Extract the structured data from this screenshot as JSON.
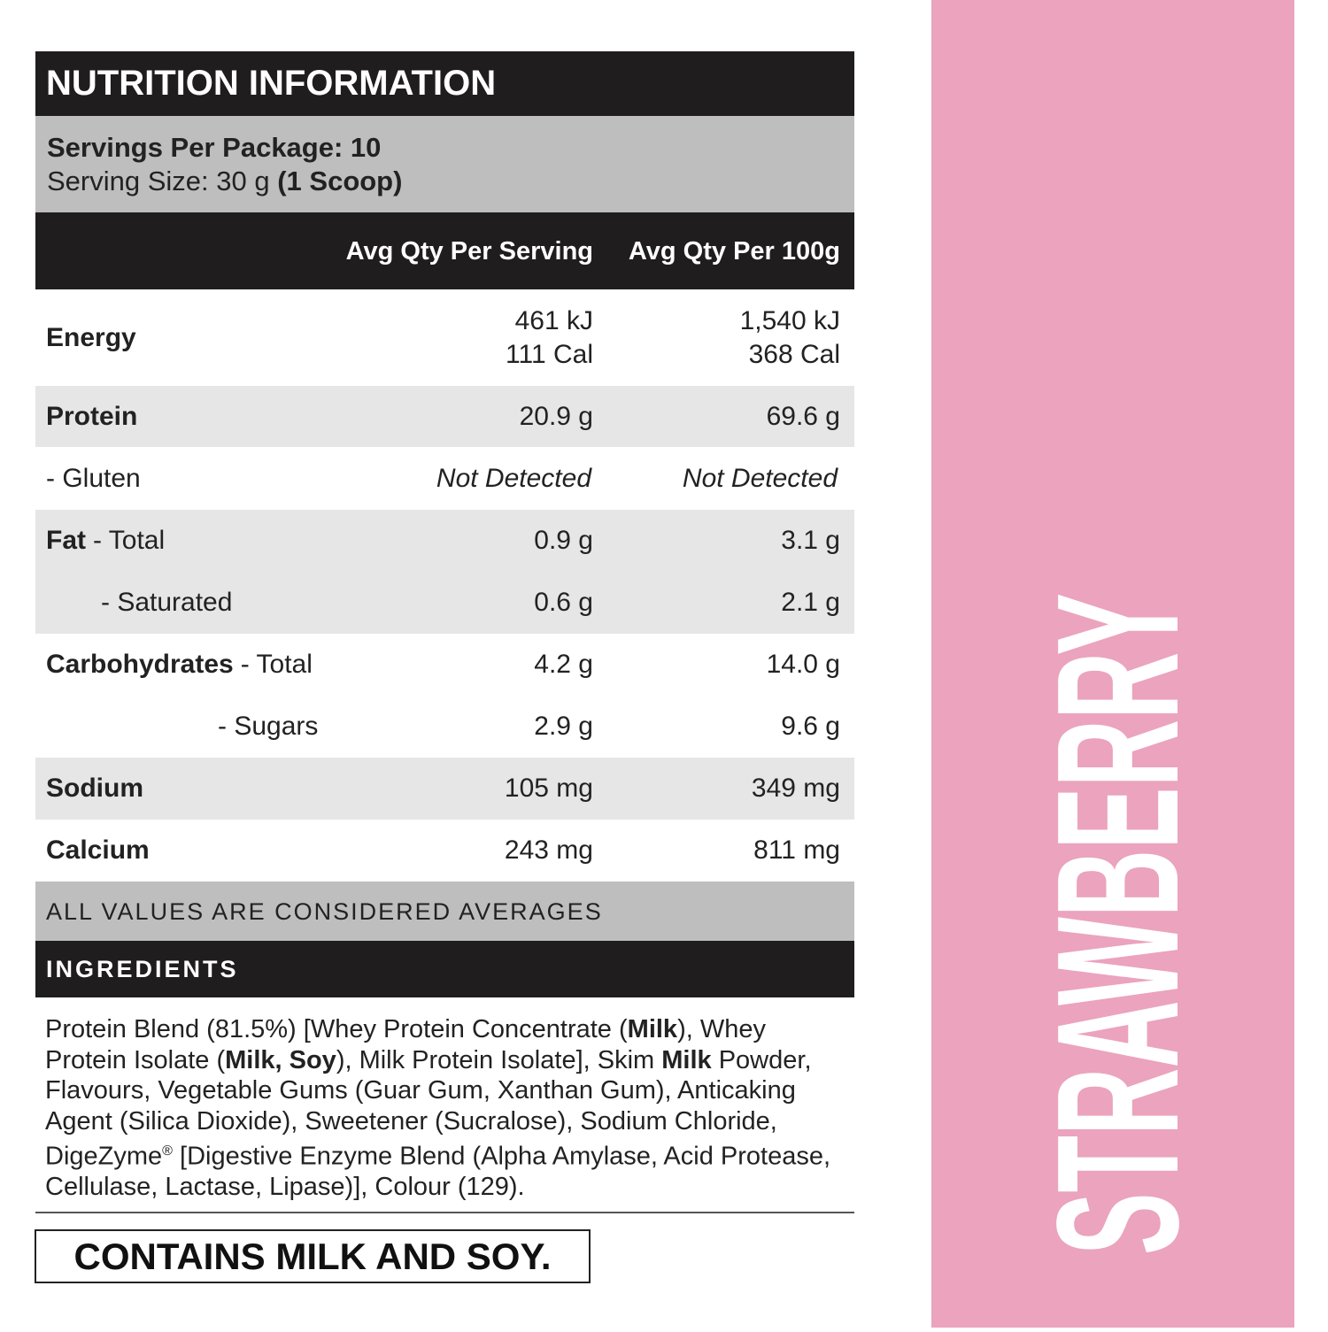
{
  "header": {
    "title": "NUTRITION INFORMATION"
  },
  "servings": {
    "per_package": "Servings Per Package: 10",
    "size": "Serving Size: 30 g",
    "size_note": "(1 Scoop)"
  },
  "table": {
    "columns": [
      "Avg Qty Per Serving",
      "Avg Qty Per 100g"
    ],
    "rows": [
      {
        "name": "Energy",
        "per_serving": [
          "461 kJ",
          "111 Cal"
        ],
        "per_100g": [
          "1,540 kJ",
          "368 Cal"
        ]
      },
      {
        "name": "Protein",
        "per_serving": "20.9 g",
        "per_100g": "69.6 g"
      },
      {
        "name": "- Gluten",
        "per_serving": "Not Detected",
        "per_100g": "Not Detected"
      },
      {
        "name": "Fat",
        "qualifier": "- Total",
        "per_serving": "0.9 g",
        "per_100g": "3.1 g"
      },
      {
        "name": "- Saturated",
        "per_serving": "0.6 g",
        "per_100g": "2.1 g"
      },
      {
        "name": "Carbohydrates",
        "qualifier": "- Total",
        "per_serving": "4.2 g",
        "per_100g": "14.0 g"
      },
      {
        "name": "- Sugars",
        "per_serving": "2.9 g",
        "per_100g": "9.6 g"
      },
      {
        "name": "Sodium",
        "per_serving": "105 mg",
        "per_100g": "349 mg"
      },
      {
        "name": "Calcium",
        "per_serving": "243 mg",
        "per_100g": "811 mg"
      }
    ],
    "footnote": "ALL VALUES ARE CONSIDERED AVERAGES"
  },
  "ingredients": {
    "title": "INGREDIENTS",
    "segments": [
      "Protein Blend (81.5%) [Whey Protein Concentrate (",
      "Milk",
      "), Whey Protein Isolate (",
      "Milk, Soy",
      "), Milk Protein Isolate], Skim ",
      "Milk",
      " Powder, Flavours, Vegetable Gums (Guar Gum, Xanthan Gum), Anticaking Agent (Silica Dioxide), Sweetener (Sucralose), Sodium Chloride, DigeZyme",
      "®",
      " [Digestive Enzyme Blend (Alpha Amylase, Acid Protease, Cellulase, Lactase, Lipase)], Colour (129)."
    ]
  },
  "allergen": "CONTAINS MILK AND SOY.",
  "flavour": "STRAWBERRY"
}
